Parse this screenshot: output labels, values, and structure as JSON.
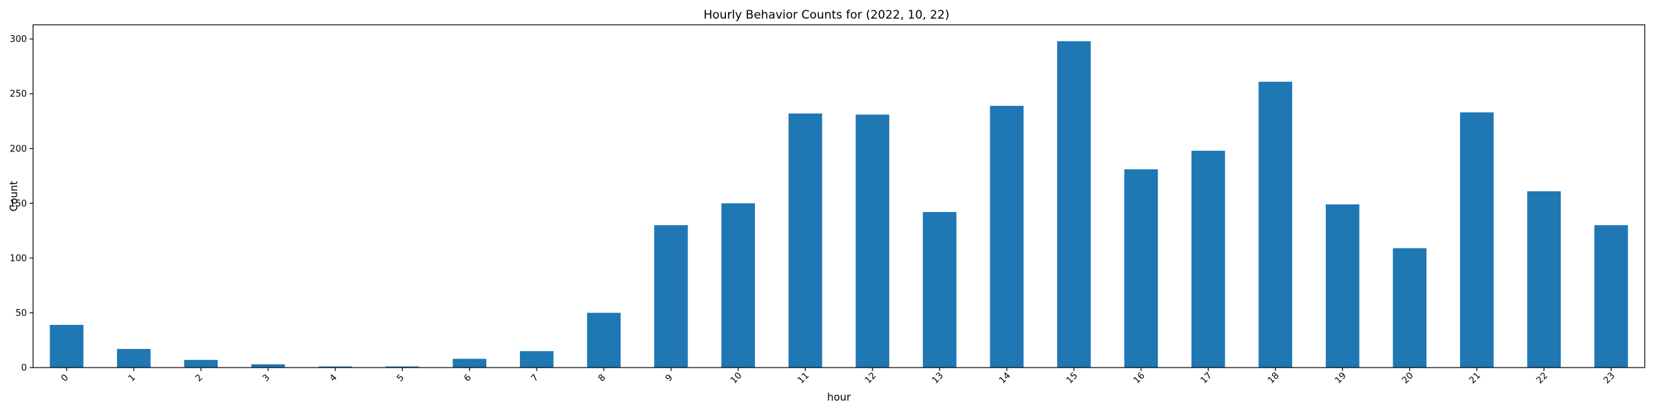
{
  "chart_data": {
    "type": "bar",
    "title": "Hourly Behavior Counts for (2022, 10, 22)",
    "xlabel": "hour",
    "ylabel": "Count",
    "categories": [
      "0",
      "1",
      "2",
      "3",
      "4",
      "5",
      "6",
      "7",
      "8",
      "9",
      "10",
      "11",
      "12",
      "13",
      "14",
      "15",
      "16",
      "17",
      "18",
      "19",
      "20",
      "21",
      "22",
      "23"
    ],
    "values": [
      39,
      17,
      7,
      3,
      1,
      1,
      8,
      15,
      50,
      130,
      150,
      232,
      231,
      142,
      239,
      298,
      181,
      198,
      261,
      149,
      109,
      233,
      161,
      130
    ],
    "ylim": [
      0,
      313
    ],
    "yticks": [
      0,
      50,
      100,
      150,
      200,
      250,
      300
    ],
    "grid": false,
    "bar_color": "#1f77b4"
  }
}
